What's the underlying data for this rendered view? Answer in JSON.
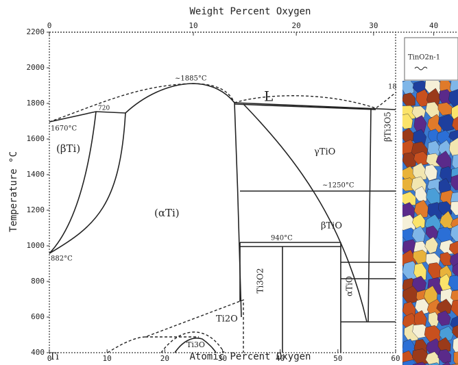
{
  "axes": {
    "top_label": "Weight Percent Oxygen",
    "top_ticks": [
      0,
      10,
      20,
      30,
      40
    ],
    "x_label": "Atomic Percent Oxygen",
    "x_lim": [
      0,
      60
    ],
    "x_ticks": [
      0,
      10,
      20,
      30,
      40,
      50,
      60
    ],
    "y_label": "Temperature °C",
    "y_lim": [
      400,
      2200
    ],
    "y_ticks": [
      400,
      600,
      800,
      1000,
      1200,
      1400,
      1600,
      1800,
      2000,
      2200
    ]
  },
  "labels": {
    "liquid": "L",
    "max_temp": "~1885°C",
    "beta_ti": "(βTi)",
    "alpha_ti": "(αTi)",
    "t1670": "1670°C",
    "t882": "882°C",
    "t720": "720",
    "gamma_tio": "γTiO",
    "t1250": "~1250°C",
    "beta_tio": "βTiO",
    "t940": "940°C",
    "ti3o2": "Ti3O2",
    "alpha_tio": "αTiO",
    "ti2o": "Ti2O",
    "ti3o": "Ti3O",
    "beta_ti3o5": "βTi3O5",
    "t18": "18",
    "ti": "Ti",
    "magneli": "TinO2n-1"
  }
}
